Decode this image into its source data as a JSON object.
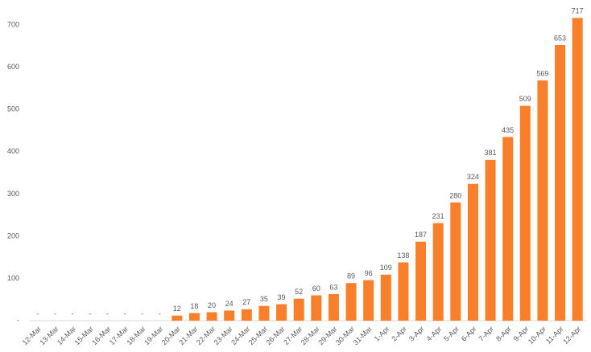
{
  "chart_data": {
    "type": "bar",
    "categories": [
      "12-Mar",
      "13-Mar",
      "14-Mar",
      "15-Mar",
      "16-Mar",
      "17-Mar",
      "18-Mar",
      "19-Mar",
      "20-Mar",
      "21-Mar",
      "22-Mar",
      "23-Mar",
      "24-Mar",
      "25-Mar",
      "26-Mar",
      "27-Mar",
      "28-Mar",
      "29-Mar",
      "30-Mar",
      "31-Mar",
      "1-Apr",
      "2-Apr",
      "3-Apr",
      "4-Apr",
      "5-Apr",
      "6-Apr",
      "7-Apr",
      "8-Apr",
      "9-Apr",
      "10-Apr",
      "11-Apr",
      "12-Apr"
    ],
    "values": [
      0,
      0,
      0,
      0,
      0,
      0,
      0,
      0,
      12,
      18,
      20,
      24,
      27,
      35,
      39,
      52,
      60,
      63,
      89,
      96,
      109,
      138,
      187,
      231,
      280,
      324,
      381,
      435,
      509,
      569,
      653,
      717
    ],
    "value_labels": [
      "-",
      "-",
      "-",
      "-",
      "-",
      "-",
      "-",
      "-",
      "12",
      "18",
      "20",
      "24",
      "27",
      "35",
      "39",
      "52",
      "60",
      "63",
      "89",
      "96",
      "109",
      "138",
      "187",
      "231",
      "280",
      "324",
      "381",
      "435",
      "509",
      "569",
      "653",
      "717"
    ],
    "color": "#fa7f2a",
    "ylim": [
      0,
      750
    ],
    "yticks": [
      {
        "value": 0,
        "label": "-"
      },
      100,
      200,
      300,
      400,
      500,
      600,
      700
    ],
    "grid": false
  }
}
